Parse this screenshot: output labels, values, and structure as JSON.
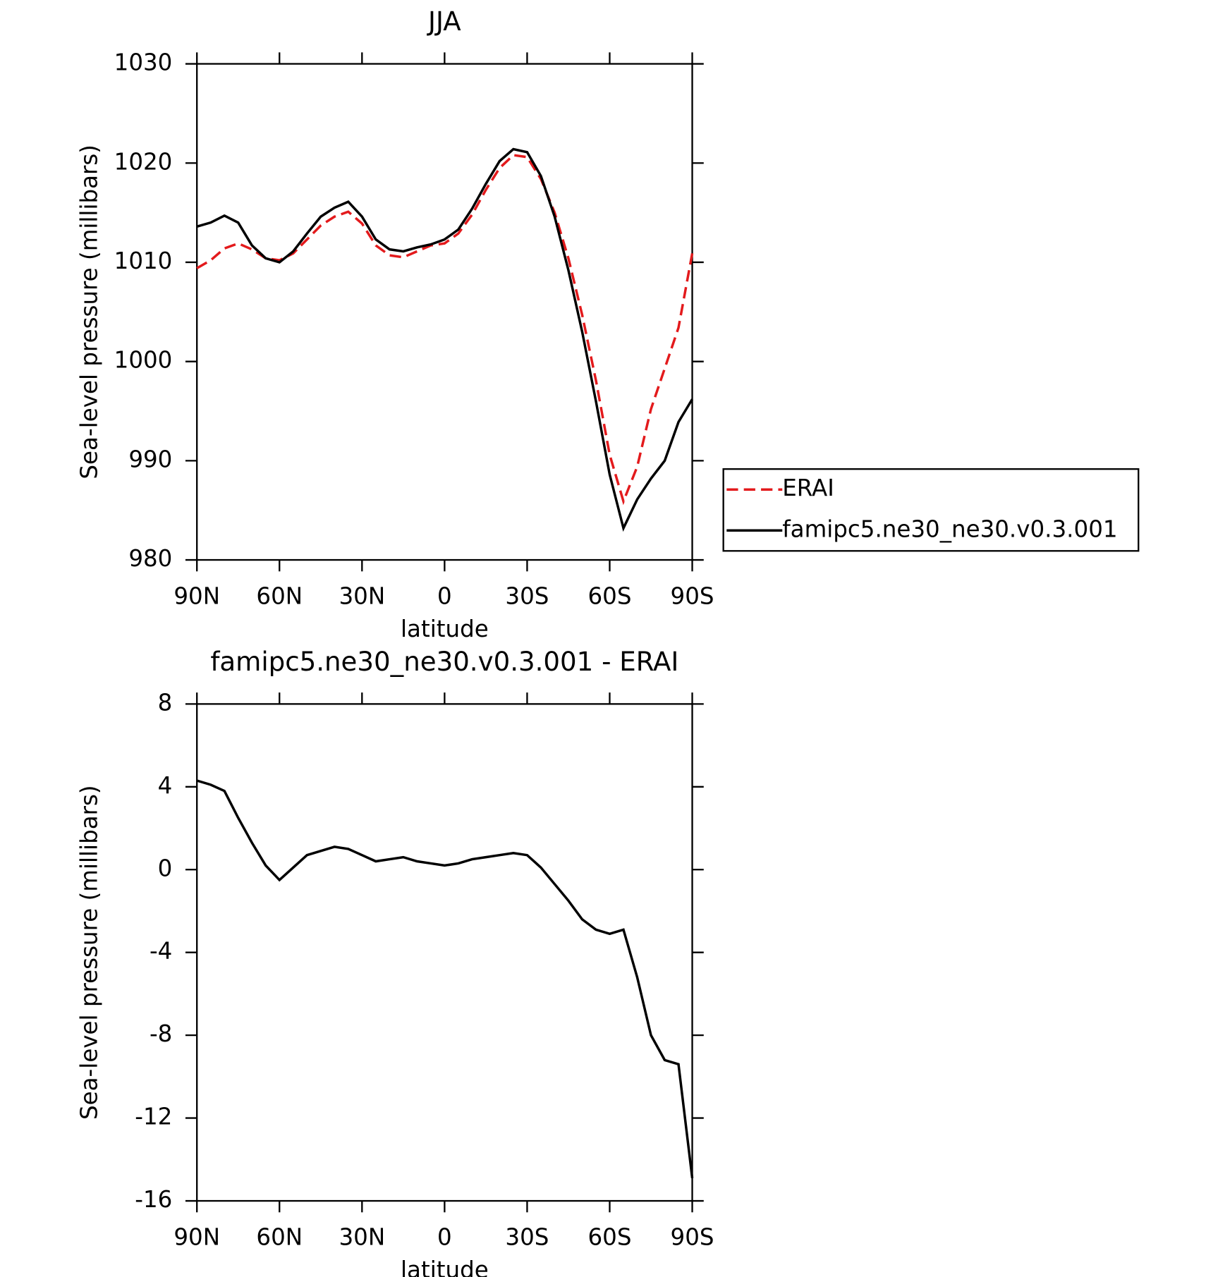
{
  "chart_data": [
    {
      "type": "line",
      "title": "JJA",
      "xlabel": "latitude",
      "ylabel": "Sea-level pressure (millibars)",
      "x": [
        90,
        85,
        80,
        75,
        70,
        65,
        60,
        55,
        50,
        45,
        40,
        35,
        30,
        25,
        20,
        15,
        10,
        5,
        0,
        -5,
        -10,
        -15,
        -20,
        -25,
        -30,
        -35,
        -40,
        -45,
        -50,
        -55,
        -60,
        -65,
        -70,
        -75,
        -80,
        -85,
        -90
      ],
      "xlim": [
        90,
        -90
      ],
      "xticks": [
        {
          "value": 90,
          "label": "90N"
        },
        {
          "value": 60,
          "label": "60N"
        },
        {
          "value": 30,
          "label": "30N"
        },
        0,
        {
          "value": -30,
          "label": "30S"
        },
        {
          "value": -60,
          "label": "60S"
        },
        {
          "value": -90,
          "label": "90S"
        }
      ],
      "ylim": [
        980,
        1030
      ],
      "yticks": [
        980,
        990,
        1000,
        1010,
        1020,
        1030
      ],
      "series": [
        {
          "name": "ERAI",
          "color": "#e31a1c",
          "style": "dashed",
          "values": [
            1009.4,
            1010.2,
            1011.4,
            1011.9,
            1011.3,
            1010.4,
            1010.2,
            1010.9,
            1012.3,
            1013.7,
            1014.6,
            1015.1,
            1013.9,
            1011.7,
            1010.7,
            1010.5,
            1011.1,
            1011.7,
            1011.9,
            1012.9,
            1014.8,
            1017.3,
            1019.5,
            1020.8,
            1020.6,
            1018.4,
            1015.0,
            1010.4,
            1004.7,
            998.1,
            990.6,
            985.9,
            989.4,
            995.2,
            999.3,
            1003.4,
            1010.9
          ]
        },
        {
          "name": "famipc5.ne30_ne30.v0.3.001",
          "color": "#000000",
          "style": "solid",
          "values": [
            1013.6,
            1014.0,
            1014.7,
            1014.0,
            1011.7,
            1010.4,
            1010.0,
            1011.1,
            1012.9,
            1014.6,
            1015.5,
            1016.1,
            1014.6,
            1012.3,
            1011.3,
            1011.1,
            1011.5,
            1011.8,
            1012.3,
            1013.3,
            1015.4,
            1017.9,
            1020.2,
            1021.4,
            1021.1,
            1018.7,
            1014.6,
            1009.2,
            1003.0,
            996.0,
            988.6,
            983.2,
            986.1,
            988.2,
            990.0,
            993.9,
            996.2
          ]
        }
      ]
    },
    {
      "type": "line",
      "title": "famipc5.ne30_ne30.v0.3.001 - ERAI",
      "xlabel": "latitude",
      "ylabel": "Sea-level pressure (millibars)",
      "x": [
        90,
        85,
        80,
        75,
        70,
        65,
        60,
        55,
        50,
        45,
        40,
        35,
        30,
        25,
        20,
        15,
        10,
        5,
        0,
        -5,
        -10,
        -15,
        -20,
        -25,
        -30,
        -35,
        -40,
        -45,
        -50,
        -55,
        -60,
        -65,
        -70,
        -75,
        -80,
        -85,
        -90
      ],
      "xlim": [
        90,
        -90
      ],
      "xticks": [
        {
          "value": 90,
          "label": "90N"
        },
        {
          "value": 60,
          "label": "60N"
        },
        {
          "value": 30,
          "label": "30N"
        },
        0,
        {
          "value": -30,
          "label": "30S"
        },
        {
          "value": -60,
          "label": "60S"
        },
        {
          "value": -90,
          "label": "90S"
        }
      ],
      "ylim": [
        -16,
        8
      ],
      "yticks": [
        -16,
        -12,
        -8,
        -4,
        0,
        4,
        8
      ],
      "series": [
        {
          "color": "#000000",
          "style": "solid",
          "values": [
            4.3,
            4.1,
            3.8,
            2.5,
            1.3,
            0.2,
            -0.5,
            0.1,
            0.7,
            0.9,
            1.1,
            1.0,
            0.7,
            0.4,
            0.5,
            0.6,
            0.4,
            0.3,
            0.2,
            0.3,
            0.5,
            0.6,
            0.7,
            0.8,
            0.7,
            0.1,
            -0.7,
            -1.5,
            -2.4,
            -2.9,
            -3.1,
            -2.9,
            -5.2,
            -8.0,
            -9.2,
            -9.4,
            -14.9
          ]
        }
      ]
    }
  ]
}
